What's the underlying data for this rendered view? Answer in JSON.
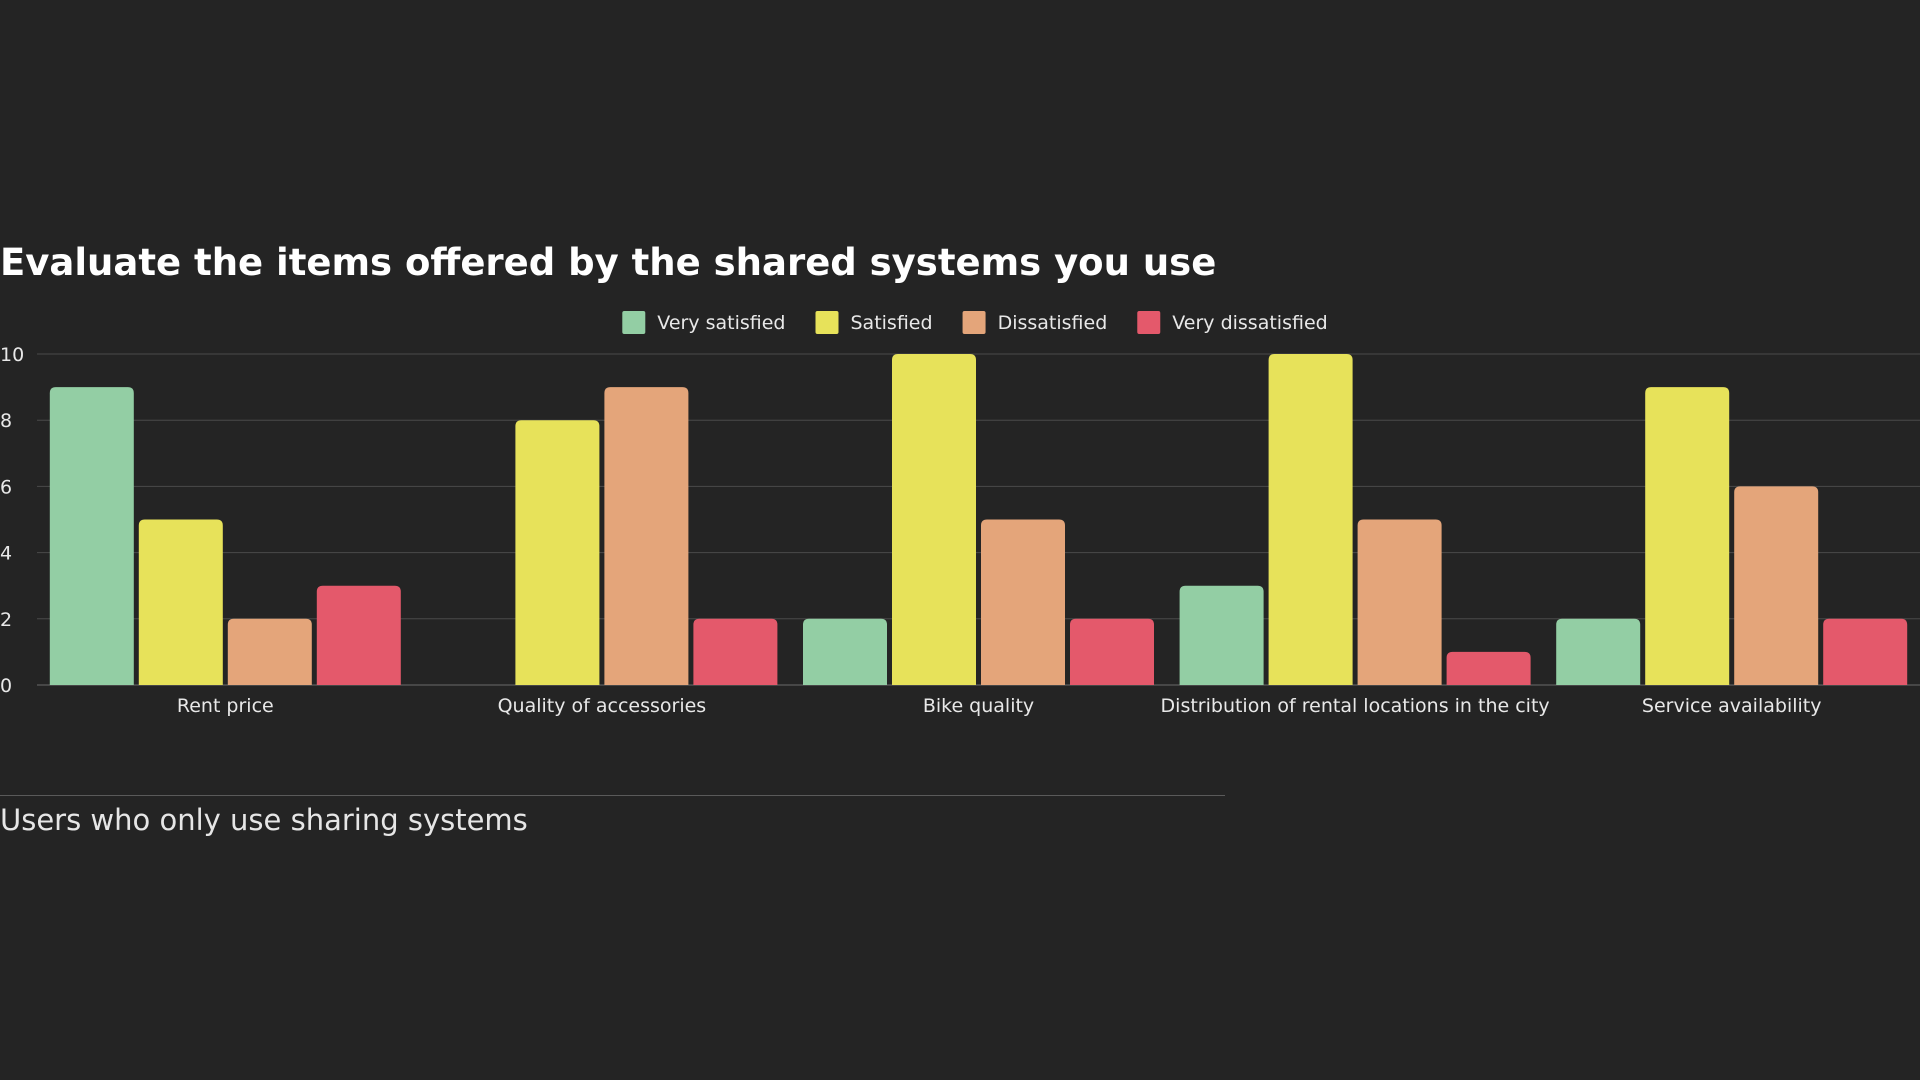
{
  "chart_data": {
    "type": "bar",
    "title": "Evaluate the items offered by the shared systems you use",
    "xlabel": "",
    "ylabel": "",
    "ylim": [
      0,
      10
    ],
    "yticks": [
      0,
      2,
      4,
      6,
      8,
      10
    ],
    "grid": true,
    "legend_position": "top-center",
    "categories": [
      "Rent price",
      "Quality of accessories",
      "Bike quality",
      "Distribution of rental locations in the city",
      "Service availability"
    ],
    "series": [
      {
        "name": "Very satisfied",
        "color": "#93cea4",
        "values": [
          9,
          0,
          2,
          3,
          2
        ]
      },
      {
        "name": "Satisfied",
        "color": "#e7e25a",
        "values": [
          5,
          8,
          10,
          10,
          9
        ]
      },
      {
        "name": "Dissatisfied",
        "color": "#e4a57a",
        "values": [
          2,
          9,
          5,
          5,
          6
        ]
      },
      {
        "name": "Very dissatisfied",
        "color": "#e4596b",
        "values": [
          3,
          2,
          2,
          1,
          2
        ]
      }
    ]
  },
  "caption": "Users who only use sharing systems",
  "colors": {
    "background": "#242424",
    "gridline": "#4a4a4a",
    "axis_text": "#e8e8e8"
  }
}
